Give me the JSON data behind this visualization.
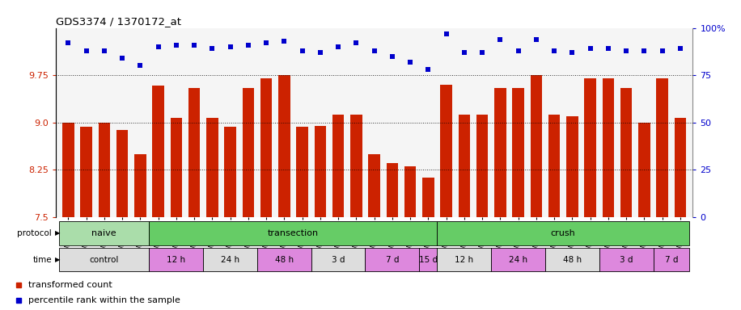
{
  "title": "GDS3374 / 1370172_at",
  "samples": [
    "GSM250998",
    "GSM250999",
    "GSM251000",
    "GSM251001",
    "GSM251002",
    "GSM251003",
    "GSM251004",
    "GSM251005",
    "GSM251006",
    "GSM251007",
    "GSM251008",
    "GSM251009",
    "GSM251010",
    "GSM251011",
    "GSM251012",
    "GSM251013",
    "GSM251014",
    "GSM251015",
    "GSM251016",
    "GSM251017",
    "GSM251018",
    "GSM251019",
    "GSM251020",
    "GSM251021",
    "GSM251022",
    "GSM251023",
    "GSM251024",
    "GSM251025",
    "GSM251026",
    "GSM251027",
    "GSM251028",
    "GSM251029",
    "GSM251030",
    "GSM251031",
    "GSM251032"
  ],
  "bar_values": [
    9.0,
    8.93,
    9.0,
    8.88,
    8.5,
    9.58,
    9.07,
    9.55,
    9.07,
    8.93,
    9.55,
    9.7,
    9.75,
    8.93,
    8.95,
    9.12,
    9.12,
    8.5,
    8.35,
    8.3,
    8.12,
    9.6,
    9.13,
    9.13,
    9.55,
    9.55,
    9.75,
    9.13,
    9.1,
    9.7,
    9.7,
    9.55,
    9.0,
    9.7,
    9.07
  ],
  "percentile_values": [
    92,
    88,
    88,
    84,
    80,
    90,
    91,
    91,
    89,
    90,
    91,
    92,
    93,
    88,
    87,
    90,
    92,
    88,
    85,
    82,
    78,
    97,
    87,
    87,
    94,
    88,
    94,
    88,
    87,
    89,
    89,
    88,
    88,
    88,
    89
  ],
  "bar_color": "#cc2200",
  "dot_color": "#0000cc",
  "ylim_left": [
    7.5,
    10.5
  ],
  "ylim_right": [
    0,
    100
  ],
  "yticks_left": [
    7.5,
    8.25,
    9.0,
    9.75
  ],
  "yticks_right": [
    0,
    25,
    50,
    75,
    100
  ],
  "grid_values": [
    7.5,
    8.25,
    9.0,
    9.75
  ],
  "proto_defs": [
    [
      "naive",
      0,
      4,
      "#aaddaa"
    ],
    [
      "transection",
      5,
      20,
      "#66cc66"
    ],
    [
      "crush",
      21,
      34,
      "#66cc66"
    ]
  ],
  "time_defs": [
    [
      "control",
      0,
      4,
      "#dddddd"
    ],
    [
      "12 h",
      5,
      7,
      "#dd88dd"
    ],
    [
      "24 h",
      8,
      10,
      "#dddddd"
    ],
    [
      "48 h",
      11,
      13,
      "#dd88dd"
    ],
    [
      "3 d",
      14,
      16,
      "#dddddd"
    ],
    [
      "7 d",
      17,
      19,
      "#dd88dd"
    ],
    [
      "15 d",
      20,
      20,
      "#dd88dd"
    ],
    [
      "12 h",
      21,
      23,
      "#dddddd"
    ],
    [
      "24 h",
      24,
      26,
      "#dd88dd"
    ],
    [
      "48 h",
      27,
      29,
      "#dddddd"
    ],
    [
      "3 d",
      30,
      32,
      "#dd88dd"
    ],
    [
      "7 d",
      33,
      34,
      "#dd88dd"
    ]
  ],
  "bg_color": "#ffffff",
  "chart_bg": "#f5f5f5"
}
